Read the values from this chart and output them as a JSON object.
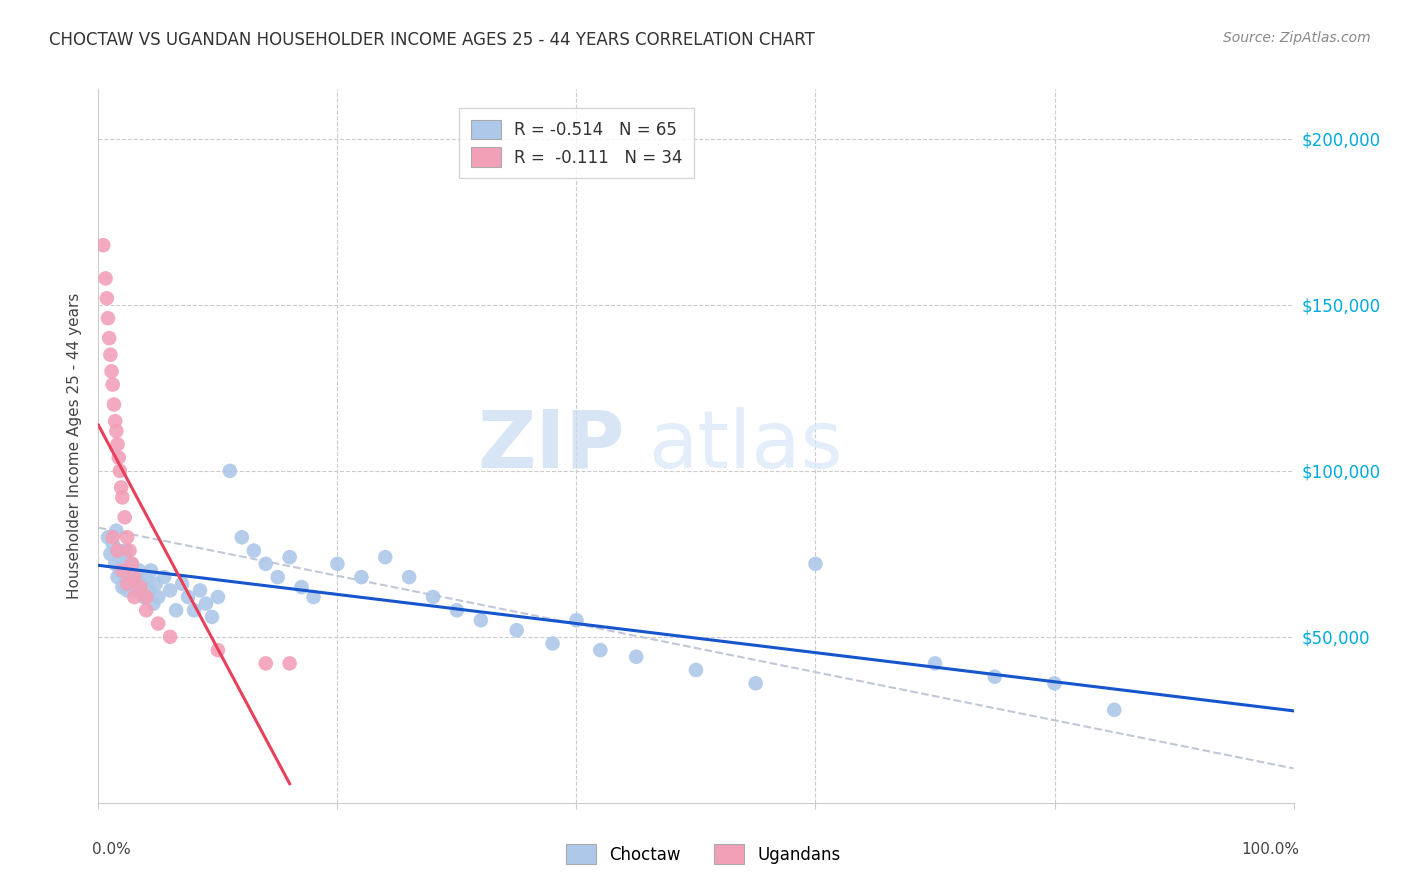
{
  "title": "CHOCTAW VS UGANDAN HOUSEHOLDER INCOME AGES 25 - 44 YEARS CORRELATION CHART",
  "source": "Source: ZipAtlas.com",
  "ylabel": "Householder Income Ages 25 - 44 years",
  "ytick_labels": [
    "$50,000",
    "$100,000",
    "$150,000",
    "$200,000"
  ],
  "ytick_values": [
    50000,
    100000,
    150000,
    200000
  ],
  "ymin": 0,
  "ymax": 215000,
  "xmin": 0.0,
  "xmax": 1.0,
  "watermark_zip": "ZIP",
  "watermark_atlas": "atlas",
  "legend_choctaw_r": "R = -0.514",
  "legend_choctaw_n": "N = 65",
  "legend_ugandan_r": "R =  -0.111",
  "legend_ugandan_n": "N = 34",
  "choctaw_color": "#adc8e8",
  "ugandan_color": "#f2a0b8",
  "choctaw_line_color": "#1755cc",
  "ugandan_line_color": "#e8405a",
  "dash_line_color": "#c0c8d8",
  "choctaw_scatter_x": [
    0.008,
    0.01,
    0.012,
    0.014,
    0.015,
    0.016,
    0.017,
    0.018,
    0.019,
    0.02,
    0.021,
    0.022,
    0.023,
    0.024,
    0.025,
    0.026,
    0.028,
    0.03,
    0.032,
    0.034,
    0.036,
    0.038,
    0.04,
    0.042,
    0.044,
    0.046,
    0.048,
    0.05,
    0.055,
    0.06,
    0.065,
    0.07,
    0.075,
    0.08,
    0.085,
    0.09,
    0.095,
    0.1,
    0.11,
    0.12,
    0.13,
    0.14,
    0.15,
    0.16,
    0.17,
    0.18,
    0.2,
    0.22,
    0.24,
    0.26,
    0.28,
    0.3,
    0.32,
    0.35,
    0.38,
    0.4,
    0.42,
    0.45,
    0.5,
    0.55,
    0.6,
    0.7,
    0.75,
    0.8,
    0.85
  ],
  "choctaw_scatter_y": [
    80000,
    75000,
    78000,
    72000,
    82000,
    68000,
    76000,
    70000,
    74000,
    65000,
    72000,
    68000,
    76000,
    64000,
    70000,
    66000,
    72000,
    68000,
    64000,
    70000,
    66000,
    62000,
    68000,
    64000,
    70000,
    60000,
    66000,
    62000,
    68000,
    64000,
    58000,
    66000,
    62000,
    58000,
    64000,
    60000,
    56000,
    62000,
    100000,
    80000,
    76000,
    72000,
    68000,
    74000,
    65000,
    62000,
    72000,
    68000,
    74000,
    68000,
    62000,
    58000,
    55000,
    52000,
    48000,
    55000,
    46000,
    44000,
    40000,
    36000,
    72000,
    42000,
    38000,
    36000,
    28000
  ],
  "ugandan_scatter_x": [
    0.004,
    0.006,
    0.007,
    0.008,
    0.009,
    0.01,
    0.011,
    0.012,
    0.013,
    0.014,
    0.015,
    0.016,
    0.017,
    0.018,
    0.019,
    0.02,
    0.022,
    0.024,
    0.026,
    0.028,
    0.03,
    0.035,
    0.04,
    0.012,
    0.016,
    0.02,
    0.024,
    0.03,
    0.04,
    0.05,
    0.06,
    0.1,
    0.14,
    0.16
  ],
  "ugandan_scatter_y": [
    168000,
    158000,
    152000,
    146000,
    140000,
    135000,
    130000,
    126000,
    120000,
    115000,
    112000,
    108000,
    104000,
    100000,
    95000,
    92000,
    86000,
    80000,
    76000,
    72000,
    68000,
    65000,
    62000,
    80000,
    76000,
    70000,
    66000,
    62000,
    58000,
    54000,
    50000,
    46000,
    42000,
    42000
  ]
}
